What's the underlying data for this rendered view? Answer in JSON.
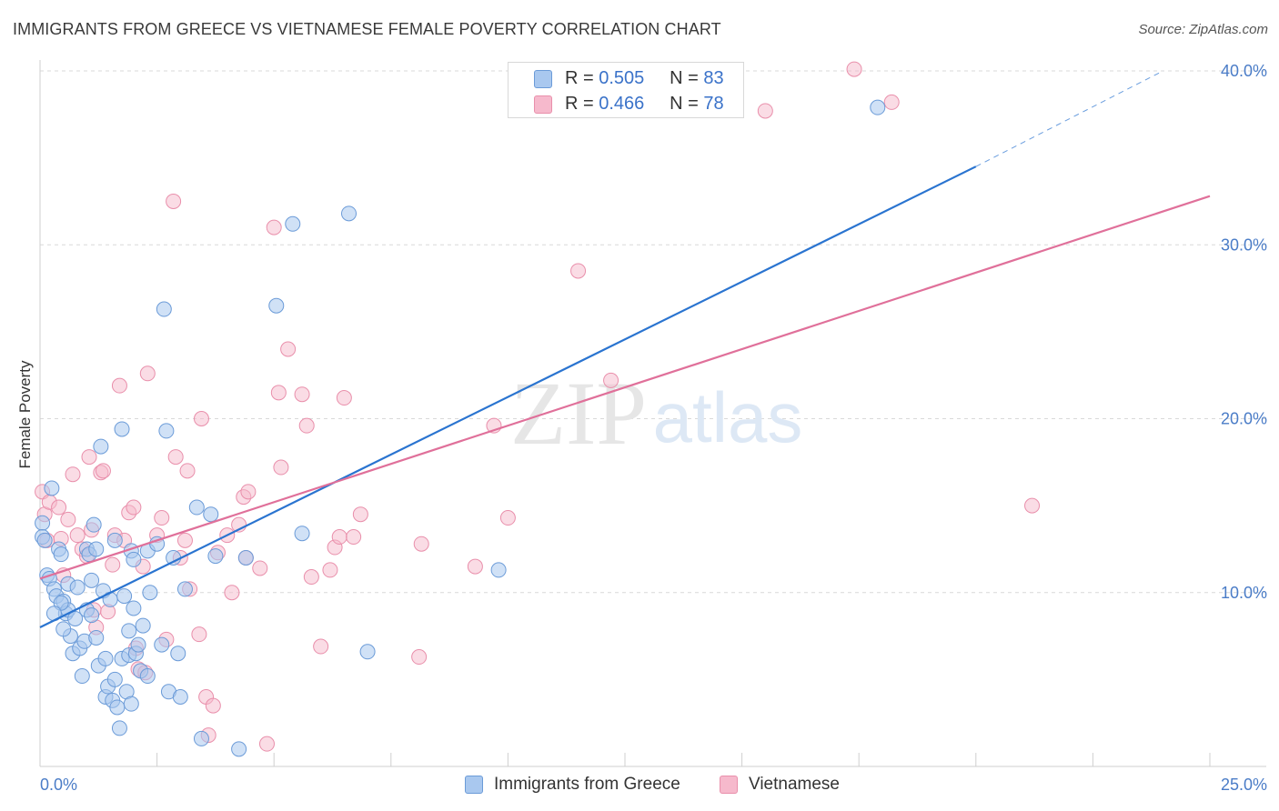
{
  "title": "IMMIGRANTS FROM GREECE VS VIETNAMESE FEMALE POVERTY CORRELATION CHART",
  "source": "Source: ZipAtlas.com",
  "watermark": {
    "zip": "ZIP",
    "atlas": "atlas"
  },
  "colors": {
    "blue_fill": "#a9c8ef",
    "blue_stroke": "#6b9bd8",
    "blue_line": "#2a74d0",
    "pink_fill": "#f6b9cc",
    "pink_stroke": "#e98fab",
    "pink_line": "#e0709a",
    "grid": "#d9d9d9",
    "tick_text": "#4a7cc7"
  },
  "legend_top": [
    {
      "r_label": "R =",
      "r_value": "0.505",
      "n_label": "N =",
      "n_value": "83",
      "color": "blue"
    },
    {
      "r_label": "R =",
      "r_value": "0.466",
      "n_label": "N =",
      "n_value": "78",
      "color": "pink"
    }
  ],
  "legend_bottom": [
    {
      "label": "Immigrants from Greece",
      "color": "blue"
    },
    {
      "label": "Vietnamese",
      "color": "pink"
    }
  ],
  "chart_data": {
    "type": "scatter",
    "title": "IMMIGRANTS FROM GREECE VS VIETNAMESE FEMALE POVERTY CORRELATION CHART",
    "xlabel": "",
    "ylabel": "Female Poverty",
    "xlim": [
      0,
      25
    ],
    "ylim": [
      0,
      40
    ],
    "x_tick_labels": [
      "0.0%",
      "25.0%"
    ],
    "y_ticks": [
      10,
      20,
      30,
      40
    ],
    "y_tick_labels": [
      "10.0%",
      "20.0%",
      "30.0%",
      "40.0%"
    ],
    "grid": true,
    "legend_position": "top-center",
    "series": [
      {
        "name": "Immigrants from Greece",
        "color": "blue",
        "R": 0.505,
        "N": 83,
        "trend": {
          "x0": 0,
          "y0": 8.0,
          "x1": 20,
          "y1": 34.5,
          "dashed_to_x": 24,
          "dashed_to_y": 40.0
        },
        "points": [
          [
            0.05,
            14.0
          ],
          [
            0.05,
            13.2
          ],
          [
            0.1,
            13.0
          ],
          [
            0.15,
            11.0
          ],
          [
            0.2,
            10.8
          ],
          [
            0.3,
            10.2
          ],
          [
            0.35,
            9.8
          ],
          [
            0.4,
            12.5
          ],
          [
            0.45,
            12.2
          ],
          [
            0.5,
            9.5
          ],
          [
            0.55,
            8.8
          ],
          [
            0.6,
            10.5
          ],
          [
            0.6,
            9.0
          ],
          [
            0.65,
            7.5
          ],
          [
            0.7,
            6.5
          ],
          [
            0.75,
            8.5
          ],
          [
            0.8,
            10.3
          ],
          [
            0.85,
            6.8
          ],
          [
            0.9,
            5.2
          ],
          [
            0.95,
            7.2
          ],
          [
            1.0,
            9.0
          ],
          [
            1.0,
            12.5
          ],
          [
            1.05,
            12.2
          ],
          [
            1.1,
            10.7
          ],
          [
            1.1,
            8.7
          ],
          [
            1.15,
            13.9
          ],
          [
            1.2,
            12.5
          ],
          [
            1.2,
            7.4
          ],
          [
            1.25,
            5.8
          ],
          [
            1.3,
            18.4
          ],
          [
            1.35,
            10.1
          ],
          [
            1.4,
            6.2
          ],
          [
            1.4,
            4.0
          ],
          [
            1.45,
            4.6
          ],
          [
            1.5,
            9.6
          ],
          [
            1.55,
            3.8
          ],
          [
            1.6,
            13.0
          ],
          [
            1.6,
            5.0
          ],
          [
            1.65,
            3.4
          ],
          [
            1.7,
            2.2
          ],
          [
            1.75,
            6.2
          ],
          [
            1.75,
            19.4
          ],
          [
            1.8,
            9.8
          ],
          [
            1.85,
            4.3
          ],
          [
            1.9,
            7.8
          ],
          [
            1.9,
            6.4
          ],
          [
            1.95,
            12.4
          ],
          [
            1.95,
            3.6
          ],
          [
            2.0,
            11.9
          ],
          [
            2.0,
            9.1
          ],
          [
            2.05,
            6.5
          ],
          [
            2.1,
            7.0
          ],
          [
            2.15,
            5.5
          ],
          [
            2.2,
            8.1
          ],
          [
            2.3,
            12.4
          ],
          [
            2.35,
            10.0
          ],
          [
            2.5,
            12.8
          ],
          [
            2.6,
            7.0
          ],
          [
            2.65,
            26.3
          ],
          [
            2.7,
            19.3
          ],
          [
            2.75,
            4.3
          ],
          [
            2.85,
            12.0
          ],
          [
            2.95,
            6.5
          ],
          [
            3.0,
            4.0
          ],
          [
            3.1,
            10.2
          ],
          [
            3.35,
            14.9
          ],
          [
            3.45,
            1.6
          ],
          [
            3.65,
            14.5
          ],
          [
            3.75,
            12.1
          ],
          [
            4.25,
            1.0
          ],
          [
            4.4,
            12.0
          ],
          [
            5.05,
            26.5
          ],
          [
            5.4,
            31.2
          ],
          [
            5.6,
            13.4
          ],
          [
            6.6,
            31.8
          ],
          [
            7.0,
            6.6
          ],
          [
            9.8,
            11.3
          ],
          [
            17.9,
            37.9
          ],
          [
            0.25,
            16.0
          ],
          [
            0.45,
            9.4
          ],
          [
            0.3,
            8.8
          ],
          [
            0.5,
            7.9
          ],
          [
            2.3,
            5.2
          ]
        ]
      },
      {
        "name": "Vietnamese",
        "color": "pink",
        "R": 0.466,
        "N": 78,
        "trend": {
          "x0": 0,
          "y0": 10.8,
          "x1": 25,
          "y1": 32.8
        },
        "points": [
          [
            0.05,
            15.8
          ],
          [
            0.1,
            14.5
          ],
          [
            0.15,
            13.0
          ],
          [
            0.2,
            15.2
          ],
          [
            0.4,
            14.9
          ],
          [
            0.45,
            13.1
          ],
          [
            0.5,
            11.0
          ],
          [
            0.6,
            14.2
          ],
          [
            0.7,
            16.8
          ],
          [
            0.8,
            13.3
          ],
          [
            0.9,
            12.5
          ],
          [
            1.0,
            12.1
          ],
          [
            1.05,
            17.8
          ],
          [
            1.1,
            13.6
          ],
          [
            1.15,
            9.0
          ],
          [
            1.2,
            8.0
          ],
          [
            1.3,
            16.9
          ],
          [
            1.35,
            17.0
          ],
          [
            1.45,
            8.9
          ],
          [
            1.55,
            11.6
          ],
          [
            1.6,
            13.3
          ],
          [
            1.7,
            21.9
          ],
          [
            1.8,
            13.0
          ],
          [
            1.9,
            14.6
          ],
          [
            2.0,
            14.9
          ],
          [
            2.05,
            6.8
          ],
          [
            2.1,
            5.6
          ],
          [
            2.2,
            11.5
          ],
          [
            2.25,
            5.4
          ],
          [
            2.3,
            22.6
          ],
          [
            2.5,
            13.3
          ],
          [
            2.6,
            14.3
          ],
          [
            2.7,
            7.3
          ],
          [
            2.85,
            32.5
          ],
          [
            2.9,
            17.8
          ],
          [
            3.0,
            12.0
          ],
          [
            3.1,
            13.0
          ],
          [
            3.15,
            17.0
          ],
          [
            3.2,
            10.2
          ],
          [
            3.4,
            7.6
          ],
          [
            3.45,
            20.0
          ],
          [
            3.55,
            4.0
          ],
          [
            3.6,
            1.8
          ],
          [
            3.7,
            3.5
          ],
          [
            3.8,
            12.3
          ],
          [
            4.0,
            13.3
          ],
          [
            4.1,
            10.0
          ],
          [
            4.25,
            13.9
          ],
          [
            4.35,
            15.5
          ],
          [
            4.4,
            12.0
          ],
          [
            4.45,
            15.8
          ],
          [
            4.7,
            11.4
          ],
          [
            4.85,
            1.3
          ],
          [
            5.0,
            31.0
          ],
          [
            5.1,
            21.5
          ],
          [
            5.15,
            17.2
          ],
          [
            5.3,
            24.0
          ],
          [
            5.6,
            21.4
          ],
          [
            5.7,
            19.6
          ],
          [
            5.8,
            10.9
          ],
          [
            6.0,
            6.9
          ],
          [
            6.2,
            11.3
          ],
          [
            6.3,
            12.6
          ],
          [
            6.4,
            13.2
          ],
          [
            6.5,
            21.2
          ],
          [
            6.7,
            13.2
          ],
          [
            6.85,
            14.5
          ],
          [
            8.1,
            6.3
          ],
          [
            8.15,
            12.8
          ],
          [
            9.3,
            11.5
          ],
          [
            9.7,
            19.6
          ],
          [
            10.0,
            14.3
          ],
          [
            11.5,
            28.5
          ],
          [
            12.2,
            22.2
          ],
          [
            15.5,
            37.7
          ],
          [
            17.4,
            40.1
          ],
          [
            18.2,
            38.2
          ],
          [
            21.2,
            15.0
          ]
        ]
      }
    ]
  }
}
